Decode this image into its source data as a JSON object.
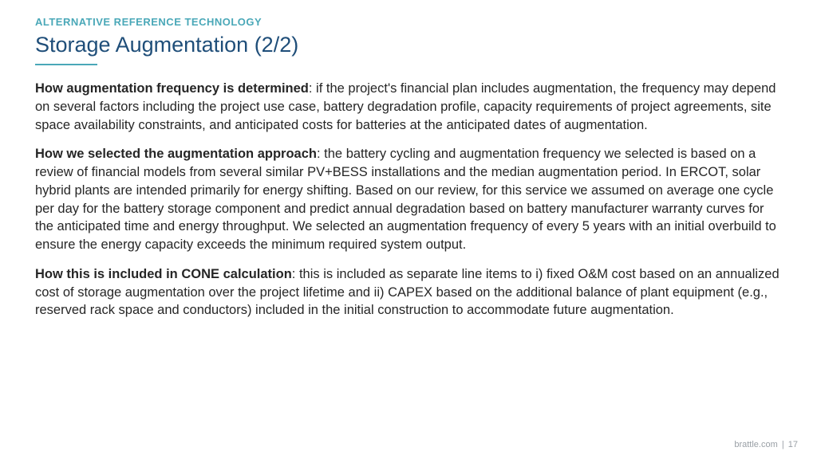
{
  "colors": {
    "eyebrow": "#4aa8b8",
    "title": "#1f4e79",
    "divider": "#4aa8b8",
    "body": "#262626",
    "footer": "#9aa0a6",
    "background": "#ffffff"
  },
  "eyebrow": "ALTERNATIVE REFERENCE TECHNOLOGY",
  "title": "Storage Augmentation (2/2)",
  "paragraphs": [
    {
      "lead": "How augmentation frequency is determined",
      "rest": ": if the project's financial plan includes augmentation, the frequency may depend on several factors including the project use case, battery degradation profile, capacity requirements of project agreements, site space availability constraints, and anticipated costs for batteries at the anticipated dates of augmentation."
    },
    {
      "lead": "How we selected the augmentation approach",
      "rest": ": the battery cycling and augmentation frequency we selected is based on a review of financial models from several similar PV+BESS installations and the median augmentation period. In ERCOT, solar hybrid plants are intended primarily for energy shifting. Based on our review, for this service we assumed on average one cycle per day for the battery storage component and predict annual degradation based on battery manufacturer warranty curves for the anticipated time and energy throughput. We selected an augmentation frequency of every 5 years with an initial overbuild to ensure the energy capacity exceeds the minimum required system output."
    },
    {
      "lead": "How this is included in CONE calculation",
      "rest": ": this is included as separate line items to i) fixed O&M cost based on an annualized cost of storage augmentation over the project lifetime and ii) CAPEX based on the additional balance of plant equipment (e.g., reserved rack space and conductors) included in the initial construction to accommodate future augmentation."
    }
  ],
  "footer": {
    "site": "brattle.com",
    "separator": "|",
    "page": "17"
  }
}
